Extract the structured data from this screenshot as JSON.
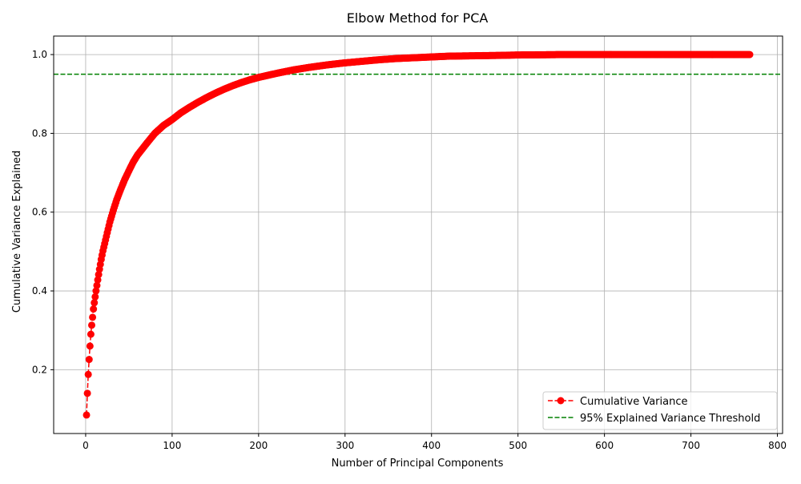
{
  "chart_data": {
    "type": "line",
    "title": "Elbow Method for PCA",
    "xlabel": "Number of Principal Components",
    "ylabel": "Cumulative Variance Explained",
    "xlim": [
      -37,
      806
    ],
    "ylim": [
      0.038,
      1.047
    ],
    "x_ticks": [
      0,
      100,
      200,
      300,
      400,
      500,
      600,
      700,
      800
    ],
    "y_ticks": [
      0.2,
      0.4,
      0.6,
      0.8,
      1.0
    ],
    "grid": true,
    "legend_position": "bottom-right",
    "threshold": 0.95,
    "series": [
      {
        "name": "Cumulative Variance",
        "color": "#ff0000",
        "line_style": "dashed",
        "marker": "circle",
        "n_points": 768,
        "x": [
          1,
          2,
          3,
          4,
          5,
          6,
          7,
          8,
          9,
          10,
          12,
          14,
          16,
          18,
          20,
          22,
          25,
          28,
          32,
          36,
          40,
          45,
          50,
          55,
          60,
          70,
          80,
          90,
          100,
          110,
          120,
          130,
          140,
          150,
          160,
          170,
          180,
          190,
          200,
          220,
          240,
          260,
          280,
          300,
          320,
          340,
          360,
          380,
          400,
          420,
          450,
          480,
          500,
          530,
          550,
          600,
          650,
          700,
          768
        ],
        "y": [
          0.085,
          0.14,
          0.188,
          0.226,
          0.26,
          0.29,
          0.313,
          0.333,
          0.354,
          0.37,
          0.4,
          0.428,
          0.455,
          0.48,
          0.502,
          0.52,
          0.548,
          0.575,
          0.605,
          0.632,
          0.655,
          0.682,
          0.705,
          0.727,
          0.745,
          0.773,
          0.8,
          0.82,
          0.835,
          0.852,
          0.866,
          0.879,
          0.891,
          0.902,
          0.912,
          0.921,
          0.929,
          0.936,
          0.942,
          0.952,
          0.961,
          0.968,
          0.974,
          0.979,
          0.983,
          0.987,
          0.99,
          0.992,
          0.994,
          0.996,
          0.997,
          0.998,
          0.999,
          0.9995,
          1.0,
          1.0,
          1.0,
          1.0,
          1.0
        ]
      },
      {
        "name": "95% Explained Variance Threshold",
        "color": "#008000",
        "line_style": "dashed",
        "marker": "none"
      }
    ]
  }
}
